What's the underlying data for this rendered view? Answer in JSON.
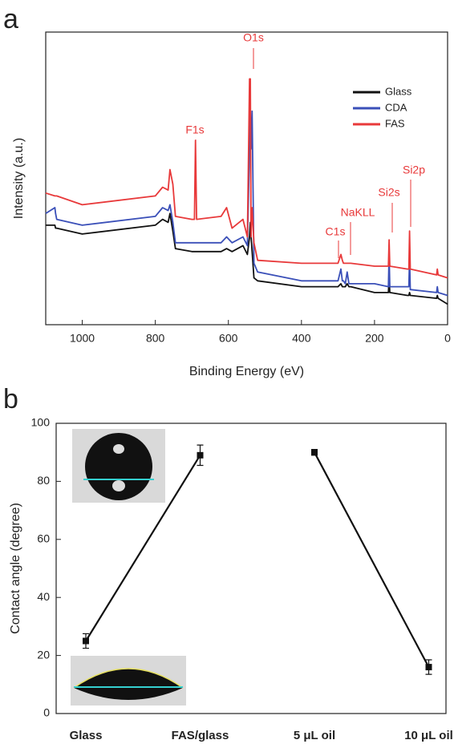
{
  "chart_data": [
    {
      "type": "line",
      "panel_label": "a",
      "xlabel": "Binding Energy (eV)",
      "ylabel": "Intensity (a.u.)",
      "xlim": [
        1100,
        0
      ],
      "xticks": [
        1000,
        800,
        600,
        400,
        200,
        0
      ],
      "ylim": [
        0,
        100
      ],
      "legend": "upper right",
      "x": [
        1100,
        1075,
        1073,
        1070,
        1000,
        800,
        780,
        765,
        760,
        752,
        745,
        700,
        693,
        690,
        687,
        620,
        605,
        590,
        560,
        548,
        542,
        540,
        538,
        535,
        530,
        520,
        400,
        300,
        292,
        288,
        285,
        280,
        275,
        270,
        265,
        200,
        162,
        160,
        158,
        110,
        106,
        104,
        102,
        30,
        28,
        26,
        0
      ],
      "series": [
        {
          "name": "Glass",
          "color": "#111111",
          "values": [
            34,
            34,
            33,
            33,
            31,
            34,
            36,
            35,
            38,
            32,
            26,
            25,
            25,
            25,
            25,
            25,
            26,
            25,
            27,
            24,
            30,
            35,
            30,
            25,
            16,
            15,
            13,
            13,
            14,
            13,
            13,
            13,
            14,
            13,
            13,
            11,
            11,
            16,
            11,
            10,
            10,
            11,
            10,
            9,
            10,
            9,
            7
          ]
        },
        {
          "name": "CDA",
          "color": "#3a4fb8",
          "values": [
            38,
            40,
            38,
            36,
            34,
            37,
            40,
            39,
            41,
            35,
            28,
            28,
            28,
            28,
            28,
            28,
            30,
            28,
            30,
            27,
            60,
            73,
            60,
            73,
            21,
            18,
            15,
            15,
            19,
            15,
            15,
            14,
            18,
            14,
            14,
            14,
            13,
            24,
            13,
            13,
            13,
            23,
            12,
            11,
            13,
            11,
            10
          ]
        },
        {
          "name": "FAS",
          "color": "#e8393a",
          "values": [
            45,
            44,
            44,
            44,
            41,
            44,
            47,
            46,
            53,
            48,
            37,
            36,
            36,
            63,
            36,
            37,
            40,
            33,
            36,
            30,
            84,
            84,
            30,
            40,
            28,
            22,
            21,
            21,
            24,
            22,
            21,
            21,
            21,
            21,
            21,
            20,
            20,
            29,
            20,
            19,
            19,
            32,
            19,
            17,
            19,
            17,
            16
          ]
        }
      ],
      "annotations": [
        "O1s",
        "F1s",
        "C1s",
        "NaKLL",
        "Si2s",
        "Si2p"
      ],
      "annotation_color": "#e8393a"
    },
    {
      "type": "line",
      "panel_label": "b",
      "ylabel": "Contact angle (degree)",
      "categories": [
        "Glass",
        "FAS/glass",
        "5 μL oil",
        "10 μL oil"
      ],
      "ylim": [
        0,
        100
      ],
      "yticks": [
        0,
        20,
        40,
        60,
        80,
        100
      ],
      "series": [
        {
          "color": "#111111",
          "values": [
            25,
            89,
            null,
            null
          ],
          "errors": [
            2.5,
            3.5,
            null,
            null
          ]
        },
        {
          "color": "#111111",
          "values": [
            null,
            null,
            90,
            16
          ],
          "errors": [
            null,
            null,
            1,
            2.5
          ]
        }
      ]
    }
  ]
}
